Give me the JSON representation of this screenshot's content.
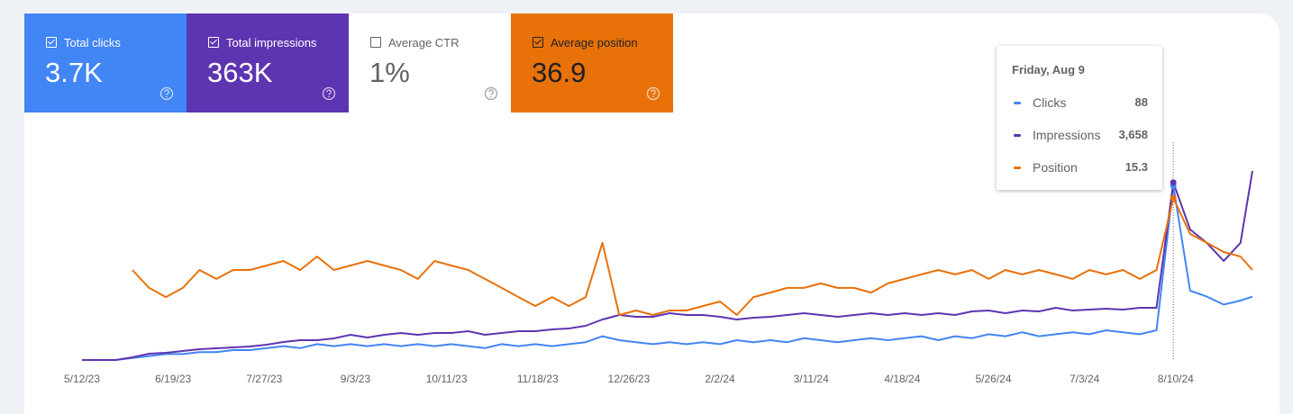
{
  "cards": [
    {
      "label": "Total clicks",
      "value": "3.7K",
      "checked": true,
      "color": "#4285f4"
    },
    {
      "label": "Total impressions",
      "value": "363K",
      "checked": true,
      "color": "#5e35b1"
    },
    {
      "label": "Average CTR",
      "value": "1%",
      "checked": false,
      "color": "#ffffff"
    },
    {
      "label": "Average position",
      "value": "36.9",
      "checked": true,
      "color": "#e8710a"
    }
  ],
  "tooltip": {
    "title": "Friday, Aug 9",
    "rows": [
      {
        "name": "Clicks",
        "value": "88",
        "color": "#4285f4"
      },
      {
        "name": "Impressions",
        "value": "3,658",
        "color": "#5e35b1"
      },
      {
        "name": "Position",
        "value": "15.3",
        "color": "#e8710a"
      }
    ]
  },
  "chart_data": {
    "type": "line",
    "x": [
      "5/12/23",
      "5/19/23",
      "5/26/23",
      "6/2/23",
      "6/9/23",
      "6/16/23",
      "6/23/23",
      "6/30/23",
      "7/7/23",
      "7/14/23",
      "7/21/23",
      "7/28/23",
      "8/4/23",
      "8/11/23",
      "8/18/23",
      "8/25/23",
      "9/1/23",
      "9/8/23",
      "9/15/23",
      "9/22/23",
      "9/29/23",
      "10/6/23",
      "10/13/23",
      "10/20/23",
      "10/27/23",
      "11/3/23",
      "11/10/23",
      "11/17/23",
      "11/24/23",
      "12/1/23",
      "12/8/23",
      "12/15/23",
      "12/22/23",
      "12/29/23",
      "1/5/24",
      "1/12/24",
      "1/19/24",
      "1/26/24",
      "2/2/24",
      "2/9/24",
      "2/16/24",
      "2/23/24",
      "3/1/24",
      "3/8/24",
      "3/15/24",
      "3/22/24",
      "3/29/24",
      "4/5/24",
      "4/12/24",
      "4/19/24",
      "4/26/24",
      "5/3/24",
      "5/10/24",
      "5/17/24",
      "5/24/24",
      "5/31/24",
      "6/7/24",
      "6/14/24",
      "6/21/24",
      "6/28/24",
      "7/5/24",
      "7/12/24",
      "7/19/24",
      "7/26/24",
      "8/2/24",
      "8/9/24",
      "8/16/24",
      "8/23/24",
      "8/30/24",
      "9/6/24",
      "9/11/24"
    ],
    "xlim": [
      "5/12/23",
      "9/11/24"
    ],
    "xticks": [
      "5/12/23",
      "6/19/23",
      "7/27/23",
      "9/3/23",
      "10/11/23",
      "11/18/23",
      "12/26/23",
      "2/2/24",
      "3/11/24",
      "4/18/24",
      "5/26/24",
      "7/3/24",
      "8/10/24"
    ],
    "series": [
      {
        "name": "Clicks",
        "color": "#4285f4",
        "ylim": [
          0,
          100
        ],
        "values": [
          0,
          0,
          0,
          1,
          2,
          3,
          3,
          4,
          4,
          5,
          5,
          6,
          7,
          6,
          8,
          7,
          8,
          7,
          8,
          7,
          8,
          7,
          8,
          7,
          6,
          8,
          7,
          8,
          7,
          8,
          9,
          12,
          10,
          9,
          8,
          9,
          8,
          9,
          8,
          10,
          9,
          10,
          9,
          11,
          10,
          9,
          10,
          11,
          10,
          11,
          12,
          10,
          12,
          11,
          13,
          12,
          14,
          12,
          13,
          14,
          13,
          15,
          14,
          13,
          15,
          88,
          35,
          32,
          28,
          30,
          32
        ]
      },
      {
        "name": "Impressions",
        "color": "#5e35b1",
        "ylim": [
          0,
          4080
        ],
        "values": [
          0,
          0,
          0,
          56,
          130,
          148,
          186,
          223,
          241,
          260,
          278,
          315,
          371,
          408,
          408,
          445,
          519,
          464,
          519,
          557,
          519,
          557,
          557,
          594,
          519,
          557,
          594,
          594,
          631,
          649,
          705,
          835,
          928,
          890,
          890,
          965,
          928,
          928,
          890,
          835,
          872,
          890,
          928,
          965,
          928,
          890,
          928,
          965,
          928,
          965,
          928,
          965,
          928,
          1002,
          1020,
          965,
          1020,
          1002,
          1076,
          1020,
          1039,
          1057,
          1039,
          1076,
          1076,
          3658,
          2690,
          2412,
          2041,
          2412,
          3896
        ]
      },
      {
        "name": "Position",
        "color": "#e8710a",
        "ylim": [
          84,
          0
        ],
        "values": [
          null,
          null,
          null,
          45.8,
          53.4,
          57.3,
          53.4,
          45.8,
          49.6,
          45.8,
          45.8,
          43.9,
          42.0,
          45.8,
          40.1,
          45.8,
          43.9,
          42.0,
          43.9,
          45.8,
          49.6,
          42.0,
          43.9,
          45.8,
          49.6,
          53.4,
          57.3,
          61.1,
          57.3,
          61.1,
          57.3,
          34.3,
          64.9,
          63.0,
          64.9,
          63.0,
          63.0,
          61.1,
          59.2,
          64.9,
          57.3,
          55.4,
          53.4,
          53.4,
          51.5,
          53.4,
          53.4,
          55.4,
          51.5,
          49.6,
          47.7,
          45.8,
          47.7,
          45.8,
          49.6,
          45.8,
          47.7,
          45.8,
          47.7,
          49.6,
          45.8,
          47.7,
          45.8,
          49.6,
          45.8,
          15.3,
          30.5,
          34.3,
          38.2,
          40.1,
          45.8
        ]
      }
    ]
  }
}
